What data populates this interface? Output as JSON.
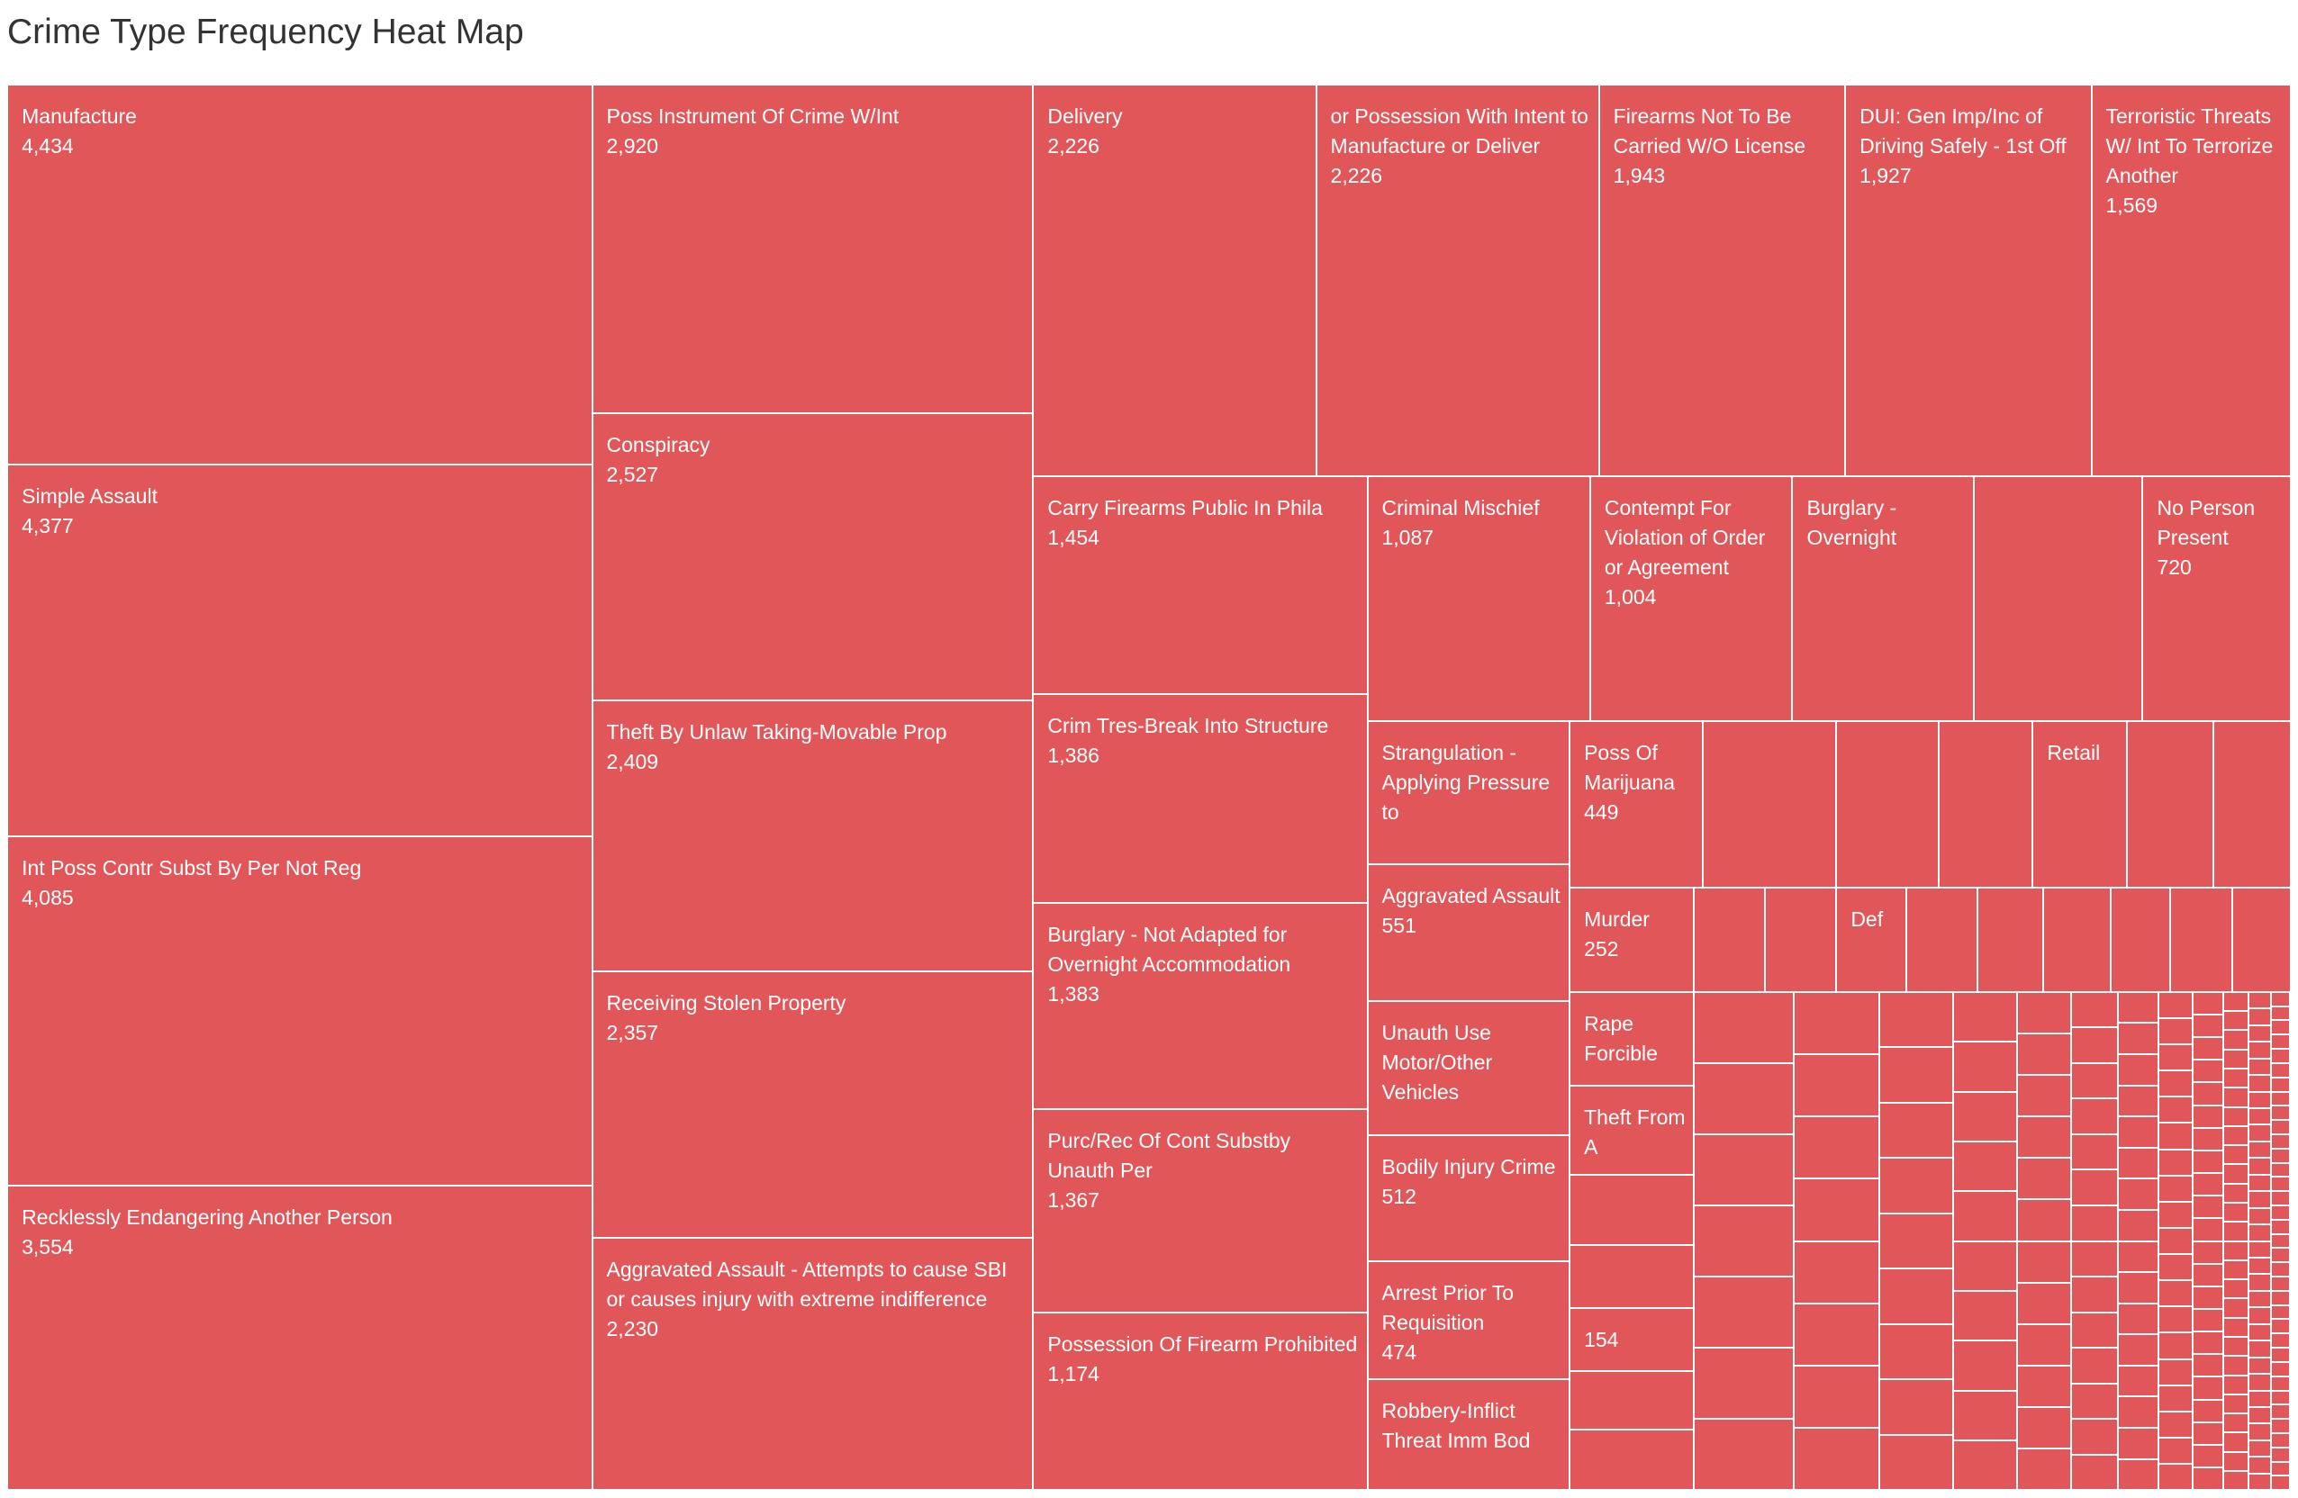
{
  "title": "Crime Type Frequency Heat Map",
  "chart_data": {
    "type": "treemap",
    "title": "Crime Type Frequency Heat Map",
    "color": "#e15759",
    "text_color": "#ffffff",
    "cells": [
      {
        "label": "Manufacture",
        "value": "4,434"
      },
      {
        "label": "Simple Assault",
        "value": "4,377"
      },
      {
        "label": "Int Poss Contr Subst By Per Not Reg",
        "value": "4,085"
      },
      {
        "label": "Recklessly Endangering Another Person",
        "value": "3,554"
      },
      {
        "label": "Poss Instrument Of Crime W/Int",
        "value": "2,920"
      },
      {
        "label": "Conspiracy",
        "value": "2,527"
      },
      {
        "label": "Theft By Unlaw Taking-Movable Prop",
        "value": "2,409"
      },
      {
        "label": "Receiving Stolen Property",
        "value": "2,357"
      },
      {
        "label": "Aggravated Assault - Attempts to cause SBI or causes injury with extreme indifference",
        "value": "2,230"
      },
      {
        "label": "Delivery",
        "value": "2,226"
      },
      {
        "label": "or Possession With Intent to Manufacture or Deliver",
        "value": "2,226"
      },
      {
        "label": "Firearms Not To Be Carried W/O License",
        "value": "1,943"
      },
      {
        "label": "DUI: Gen Imp/Inc of Driving Safely - 1st Off",
        "value": "1,927"
      },
      {
        "label": "Terroristic Threats W/ Int To Terrorize Another",
        "value": "1,569"
      },
      {
        "label": "Carry Firearms Public In Phila",
        "value": "1,454"
      },
      {
        "label": "Crim Tres-Break Into Structure",
        "value": "1,386"
      },
      {
        "label": "Burglary - Not Adapted for Overnight Accommodation",
        "value": "1,383"
      },
      {
        "label": "Purc/Rec Of Cont Substby Unauth Per",
        "value": "1,367"
      },
      {
        "label": "Possession Of Firearm Prohibited",
        "value": "1,174"
      },
      {
        "label": "Criminal Mischief",
        "value": "1,087"
      },
      {
        "label": "Contempt For Violation of Order or Agreement",
        "value": "1,004"
      },
      {
        "label": "Burglary - Overnight"
      },
      {},
      {
        "label": "No Person Present",
        "value": "720"
      },
      {
        "label": "Strangulation - Applying Pressure to"
      },
      {
        "label": "Aggravated Assault",
        "value": "551"
      },
      {
        "label": "Unauth Use Motor/Other Vehicles"
      },
      {
        "label": "Bodily Injury Crime",
        "value": "512"
      },
      {
        "label": "Arrest Prior To Requisition",
        "value": "474"
      },
      {
        "label": "Robbery-Inflict Threat Imm Bod"
      },
      {
        "label": "Poss Of Marijuana",
        "value": "449"
      },
      {},
      {},
      {},
      {
        "label": "Retail"
      },
      {},
      {},
      {
        "label": "Murder",
        "value": "252"
      },
      {},
      {},
      {
        "label": "Def"
      },
      {},
      {},
      {},
      {},
      {},
      {},
      {
        "label": "Rape Forcible"
      },
      {
        "label": "Theft From A"
      },
      {},
      {},
      {
        "value": "154"
      },
      {},
      {}
    ]
  }
}
